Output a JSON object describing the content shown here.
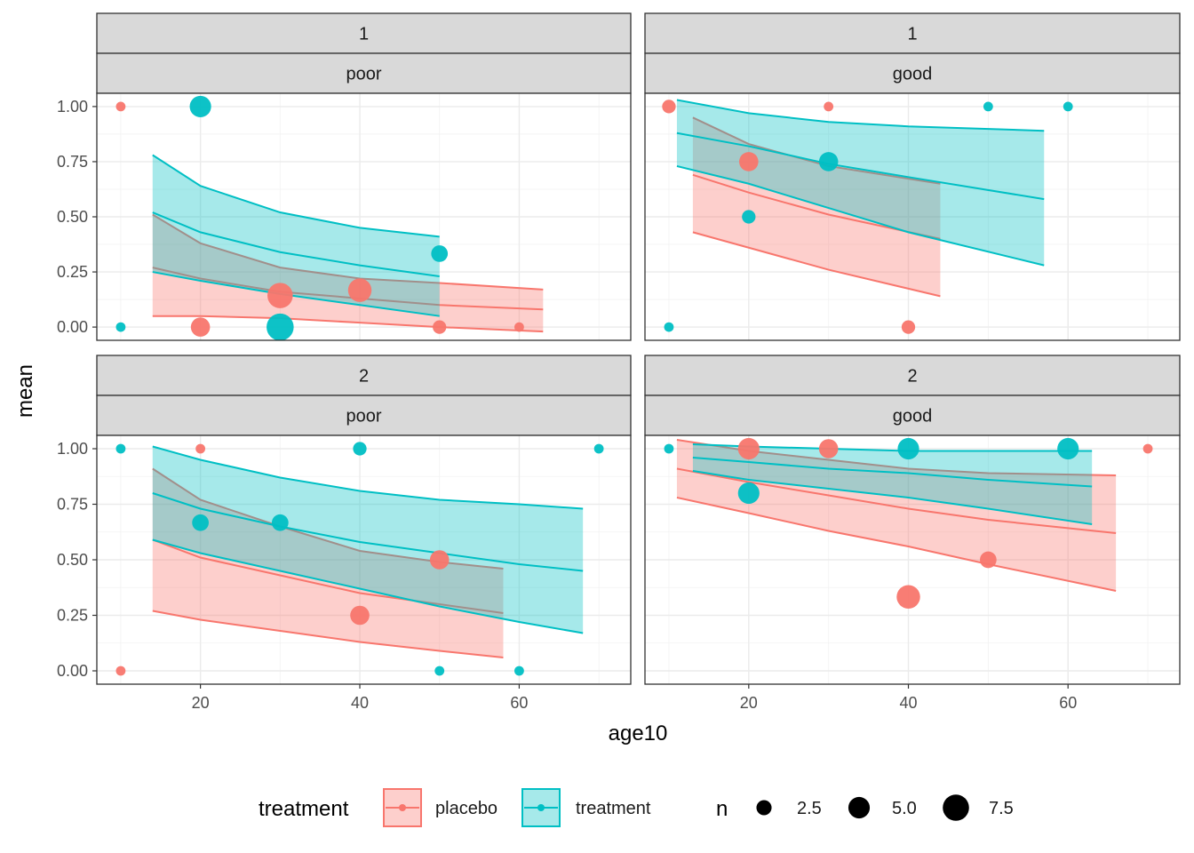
{
  "chart_data": {
    "type": "scatter",
    "xlabel": "age10",
    "ylabel": "mean",
    "xlim": [
      7,
      74
    ],
    "ylim": [
      -0.06,
      1.06
    ],
    "x_ticks": [
      20,
      40,
      60
    ],
    "x_tick_labels": [
      "20",
      "40",
      "60"
    ],
    "y_ticks": [
      0,
      0.25,
      0.5,
      0.75,
      1.0
    ],
    "y_tick_labels": [
      "0.00",
      "0.25",
      "0.50",
      "0.75",
      "1.00"
    ],
    "colors": {
      "placebo": "#F8766D",
      "treatment": "#00BFC4"
    },
    "legend": {
      "position": "bottom",
      "color_title": "treatment",
      "color_entries": [
        "placebo",
        "treatment"
      ],
      "size_title": "n",
      "size_values": [
        2.5,
        5.0,
        7.5
      ],
      "size_labels": [
        "2.5",
        "5.0",
        "7.5"
      ]
    },
    "panels": [
      {
        "strip_top": "1",
        "strip_bottom": "poor",
        "points": [
          {
            "g": "placebo",
            "x": 10,
            "y": 1.0,
            "n": 1
          },
          {
            "g": "treatment",
            "x": 10,
            "y": 0.0,
            "n": 1
          },
          {
            "g": "treatment",
            "x": 20,
            "y": 1.0,
            "n": 5
          },
          {
            "g": "placebo",
            "x": 20,
            "y": 0.0,
            "n": 4
          },
          {
            "g": "placebo",
            "x": 30,
            "y": 0.143,
            "n": 7
          },
          {
            "g": "treatment",
            "x": 30,
            "y": 0.0,
            "n": 8
          },
          {
            "g": "placebo",
            "x": 40,
            "y": 0.167,
            "n": 6
          },
          {
            "g": "treatment",
            "x": 50,
            "y": 0.333,
            "n": 3
          },
          {
            "g": "placebo",
            "x": 50,
            "y": 0.0,
            "n": 2
          },
          {
            "g": "placebo",
            "x": 60,
            "y": 0.0,
            "n": 1
          }
        ],
        "bands": [
          {
            "g": "placebo",
            "x": [
              14,
              20,
              30,
              40,
              50,
              63
            ],
            "lower": [
              0.05,
              0.05,
              0.04,
              0.02,
              0.0,
              -0.02
            ],
            "mean": [
              0.27,
              0.22,
              0.16,
              0.13,
              0.1,
              0.08
            ],
            "upper": [
              0.51,
              0.38,
              0.27,
              0.22,
              0.2,
              0.17
            ]
          },
          {
            "g": "treatment",
            "x": [
              14,
              20,
              30,
              40,
              50
            ],
            "lower": [
              0.25,
              0.21,
              0.15,
              0.1,
              0.05
            ],
            "mean": [
              0.52,
              0.43,
              0.34,
              0.28,
              0.23
            ],
            "upper": [
              0.78,
              0.64,
              0.52,
              0.45,
              0.41
            ]
          }
        ]
      },
      {
        "strip_top": "1",
        "strip_bottom": "good",
        "points": [
          {
            "g": "placebo",
            "x": 10,
            "y": 1.0,
            "n": 2
          },
          {
            "g": "placebo",
            "x": 30,
            "y": 1.0,
            "n": 1
          },
          {
            "g": "treatment",
            "x": 50,
            "y": 1.0,
            "n": 1
          },
          {
            "g": "treatment",
            "x": 60,
            "y": 1.0,
            "n": 1
          },
          {
            "g": "placebo",
            "x": 20,
            "y": 0.75,
            "n": 4
          },
          {
            "g": "treatment",
            "x": 30,
            "y": 0.75,
            "n": 4
          },
          {
            "g": "treatment",
            "x": 20,
            "y": 0.5,
            "n": 2
          },
          {
            "g": "treatment",
            "x": 10,
            "y": 0.0,
            "n": 1
          },
          {
            "g": "placebo",
            "x": 40,
            "y": 0.0,
            "n": 2
          }
        ],
        "bands": [
          {
            "g": "placebo",
            "x": [
              13,
              20,
              30,
              44
            ],
            "lower": [
              0.43,
              0.36,
              0.26,
              0.14
            ],
            "mean": [
              0.69,
              0.61,
              0.51,
              0.4
            ],
            "upper": [
              0.95,
              0.83,
              0.73,
              0.65
            ]
          },
          {
            "g": "treatment",
            "x": [
              11,
              20,
              30,
              40,
              57
            ],
            "lower": [
              0.73,
              0.65,
              0.54,
              0.43,
              0.28
            ],
            "mean": [
              0.88,
              0.82,
              0.74,
              0.68,
              0.58
            ],
            "upper": [
              1.03,
              0.97,
              0.93,
              0.91,
              0.89
            ]
          }
        ]
      },
      {
        "strip_top": "2",
        "strip_bottom": "poor",
        "points": [
          {
            "g": "treatment",
            "x": 10,
            "y": 1.0,
            "n": 1
          },
          {
            "g": "placebo",
            "x": 20,
            "y": 1.0,
            "n": 1
          },
          {
            "g": "treatment",
            "x": 40,
            "y": 1.0,
            "n": 2
          },
          {
            "g": "treatment",
            "x": 70,
            "y": 1.0,
            "n": 1
          },
          {
            "g": "treatment",
            "x": 20,
            "y": 0.667,
            "n": 3
          },
          {
            "g": "treatment",
            "x": 30,
            "y": 0.667,
            "n": 3
          },
          {
            "g": "placebo",
            "x": 50,
            "y": 0.5,
            "n": 4
          },
          {
            "g": "placebo",
            "x": 40,
            "y": 0.25,
            "n": 4
          },
          {
            "g": "placebo",
            "x": 10,
            "y": 0.0,
            "n": 1
          },
          {
            "g": "treatment",
            "x": 50,
            "y": 0.0,
            "n": 1
          },
          {
            "g": "treatment",
            "x": 60,
            "y": 0.0,
            "n": 1
          }
        ],
        "bands": [
          {
            "g": "placebo",
            "x": [
              14,
              20,
              30,
              40,
              50,
              58
            ],
            "lower": [
              0.27,
              0.23,
              0.18,
              0.13,
              0.09,
              0.06
            ],
            "mean": [
              0.59,
              0.51,
              0.43,
              0.35,
              0.3,
              0.26
            ],
            "upper": [
              0.91,
              0.77,
              0.65,
              0.54,
              0.49,
              0.46
            ]
          },
          {
            "g": "treatment",
            "x": [
              14,
              20,
              30,
              40,
              50,
              60,
              68
            ],
            "lower": [
              0.59,
              0.53,
              0.45,
              0.37,
              0.29,
              0.22,
              0.17
            ],
            "mean": [
              0.8,
              0.73,
              0.65,
              0.58,
              0.53,
              0.48,
              0.45
            ],
            "upper": [
              1.01,
              0.95,
              0.87,
              0.81,
              0.77,
              0.75,
              0.73
            ]
          }
        ]
      },
      {
        "strip_top": "2",
        "strip_bottom": "good",
        "points": [
          {
            "g": "treatment",
            "x": 10,
            "y": 1.0,
            "n": 1
          },
          {
            "g": "placebo",
            "x": 20,
            "y": 1.0,
            "n": 5
          },
          {
            "g": "placebo",
            "x": 30,
            "y": 1.0,
            "n": 4
          },
          {
            "g": "treatment",
            "x": 40,
            "y": 1.0,
            "n": 5
          },
          {
            "g": "treatment",
            "x": 60,
            "y": 1.0,
            "n": 5
          },
          {
            "g": "placebo",
            "x": 70,
            "y": 1.0,
            "n": 1
          },
          {
            "g": "treatment",
            "x": 20,
            "y": 0.8,
            "n": 5
          },
          {
            "g": "placebo",
            "x": 50,
            "y": 0.5,
            "n": 3
          },
          {
            "g": "placebo",
            "x": 40,
            "y": 0.333,
            "n": 6
          }
        ],
        "bands": [
          {
            "g": "placebo",
            "x": [
              11,
              20,
              30,
              40,
              50,
              66
            ],
            "lower": [
              0.78,
              0.71,
              0.63,
              0.56,
              0.48,
              0.36
            ],
            "mean": [
              0.91,
              0.85,
              0.79,
              0.73,
              0.68,
              0.62
            ],
            "upper": [
              1.04,
              0.99,
              0.95,
              0.91,
              0.89,
              0.88
            ]
          },
          {
            "g": "treatment",
            "x": [
              13,
              20,
              30,
              40,
              50,
              63
            ],
            "lower": [
              0.9,
              0.86,
              0.82,
              0.78,
              0.73,
              0.66
            ],
            "mean": [
              0.96,
              0.94,
              0.91,
              0.89,
              0.86,
              0.83
            ],
            "upper": [
              1.02,
              1.01,
              1.0,
              0.99,
              0.99,
              0.99
            ]
          }
        ]
      }
    ]
  }
}
